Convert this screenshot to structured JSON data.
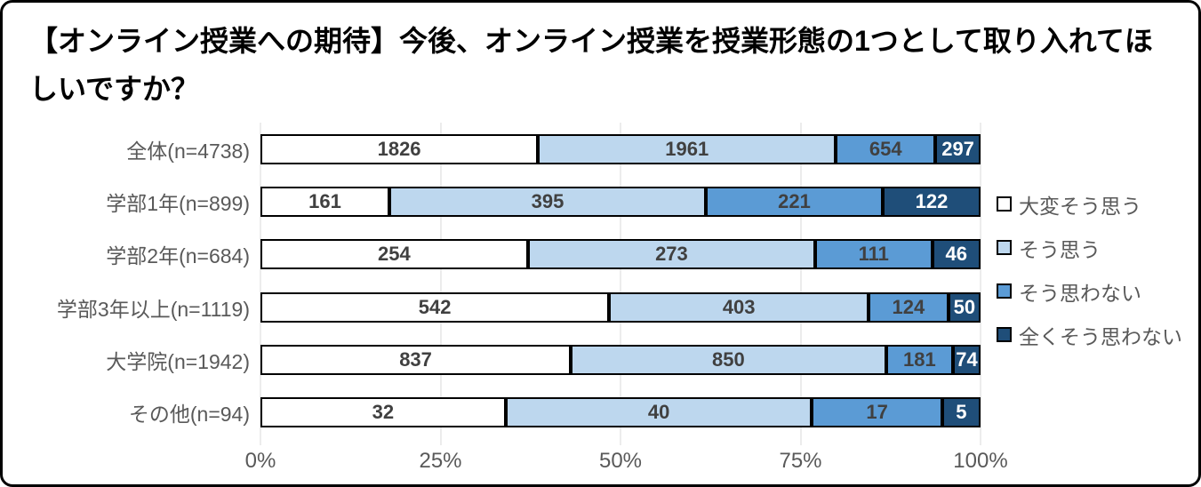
{
  "title": "【オンライン授業への期待】今後、オンライン授業を授業形態の1つとして取り入れてほしいですか？",
  "chart_data": {
    "type": "bar",
    "orientation": "horizontal",
    "stacked": true,
    "normalized": "percent",
    "title": "【オンライン授業への期待】今後、オンライン授業を授業形態の1つとして取り入れてほしいですか？",
    "categories": [
      "全体(n=4738)",
      "学部1年(n=899)",
      "学部2年(n=684)",
      "学部3年以上(n=1119)",
      "大学院(n=1942)",
      "その他(n=94)"
    ],
    "series": [
      {
        "name": "大変そう思う",
        "color": "#ffffff",
        "label_color": "#404040",
        "values": [
          1826,
          161,
          254,
          542,
          837,
          32
        ]
      },
      {
        "name": "そう思う",
        "color": "#bdd7ee",
        "label_color": "#404040",
        "values": [
          1961,
          395,
          273,
          403,
          850,
          40
        ]
      },
      {
        "name": "そう思わない",
        "color": "#5b9bd5",
        "label_color": "#404040",
        "values": [
          654,
          221,
          111,
          124,
          181,
          17
        ]
      },
      {
        "name": "全くそう思わない",
        "color": "#1f4e79",
        "label_color": "#ffffff",
        "values": [
          297,
          122,
          46,
          50,
          74,
          5
        ]
      }
    ],
    "totals": [
      4738,
      899,
      684,
      1119,
      1942,
      94
    ],
    "x_ticks": [
      "0%",
      "25%",
      "50%",
      "75%",
      "100%"
    ],
    "xlim": [
      0,
      100
    ],
    "grid": true,
    "legend_position": "right",
    "colors": {
      "axis_text": "#595959",
      "gridline": "#d9d9d9",
      "bar_border": "#000000",
      "title_text": "#000000"
    }
  }
}
